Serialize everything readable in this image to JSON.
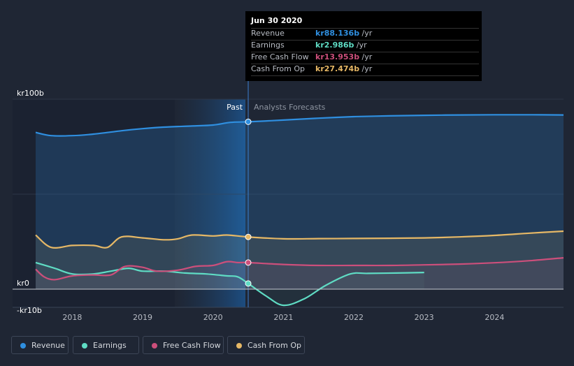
{
  "colors": {
    "revenue": "#2f8fe0",
    "earnings": "#5fdcc4",
    "free_cash_flow": "#cc4f7b",
    "cash_from_op": "#e6b866",
    "background": "#1f2634"
  },
  "tooltip": {
    "date": "Jun 30 2020",
    "rows": [
      {
        "label": "Revenue",
        "value": "kr88.136b",
        "unit": " /yr"
      },
      {
        "label": "Earnings",
        "value": "kr2.986b",
        "unit": " /yr"
      },
      {
        "label": "Free Cash Flow",
        "value": "kr13.953b",
        "unit": " /yr"
      },
      {
        "label": "Cash From Op",
        "value": "kr27.474b",
        "unit": " /yr"
      }
    ]
  },
  "legend": [
    {
      "label": "Revenue",
      "icon": "revenue-dot"
    },
    {
      "label": "Earnings",
      "icon": "earnings-dot"
    },
    {
      "label": "Free Cash Flow",
      "icon": "free-cash-flow-dot"
    },
    {
      "label": "Cash From Op",
      "icon": "cash-from-op-dot"
    }
  ],
  "chart_data": {
    "type": "line",
    "title": "",
    "xlabel": "",
    "ylabel": "",
    "ylim": [
      -10,
      100
    ],
    "xlim": [
      2017.45,
      2024.98
    ],
    "y_tick_labels": [
      {
        "value": 100,
        "label": "kr100b"
      },
      {
        "value": 0,
        "label": "kr0"
      },
      {
        "value": -10,
        "label": "-kr10b"
      }
    ],
    "x_ticks": [
      {
        "value": 2018,
        "label": "2018"
      },
      {
        "value": 2019,
        "label": "2019"
      },
      {
        "value": 2020,
        "label": "2020"
      },
      {
        "value": 2021,
        "label": "2021"
      },
      {
        "value": 2022,
        "label": "2022"
      },
      {
        "value": 2023,
        "label": "2023"
      },
      {
        "value": 2024,
        "label": "2024"
      }
    ],
    "divider": {
      "x": 2020.5,
      "past_label": "Past",
      "forecast_label": "Analysts Forecasts"
    },
    "series": [
      {
        "name": "Revenue",
        "key": "revenue",
        "x": [
          2017.48,
          2017.7,
          2018.0,
          2018.3,
          2018.7,
          2019.0,
          2019.3,
          2019.7,
          2020.0,
          2020.25,
          2020.5,
          2021.0,
          2021.5,
          2022.0,
          2022.5,
          2023.0,
          2023.5,
          2024.0,
          2024.5,
          2024.98
        ],
        "y": [
          82.5,
          80.8,
          80.8,
          81.6,
          83.4,
          84.5,
          85.3,
          85.9,
          86.4,
          87.8,
          88.1,
          89.0,
          90.0,
          90.8,
          91.2,
          91.5,
          91.7,
          91.8,
          91.8,
          91.7
        ]
      },
      {
        "name": "Earnings",
        "key": "earnings",
        "x": [
          2017.48,
          2017.75,
          2018.0,
          2018.3,
          2018.55,
          2018.8,
          2019.0,
          2019.3,
          2019.6,
          2019.9,
          2020.2,
          2020.35,
          2020.5,
          2020.75,
          2021.0,
          2021.3,
          2021.6,
          2021.95,
          2022.2,
          2022.6,
          2023.0
        ],
        "y": [
          14.0,
          11.0,
          8.0,
          8.0,
          9.5,
          11.0,
          9.5,
          9.5,
          8.5,
          8.0,
          7.0,
          6.5,
          3.0,
          -3.5,
          -8.5,
          -5.0,
          2.0,
          8.0,
          8.3,
          8.5,
          8.8
        ]
      },
      {
        "name": "Free Cash Flow",
        "key": "free_cash_flow",
        "x": [
          2017.48,
          2017.6,
          2017.75,
          2018.0,
          2018.3,
          2018.55,
          2018.75,
          2019.0,
          2019.2,
          2019.5,
          2019.75,
          2020.0,
          2020.2,
          2020.35,
          2020.5,
          2021.0,
          2021.5,
          2022.0,
          2022.5,
          2023.0,
          2023.5,
          2024.0,
          2024.5,
          2024.98
        ],
        "y": [
          10.5,
          6.5,
          5.0,
          7.0,
          7.5,
          7.5,
          12.0,
          11.5,
          9.5,
          10.0,
          12.0,
          12.5,
          14.5,
          14.0,
          14.0,
          13.0,
          12.5,
          12.5,
          12.5,
          12.8,
          13.2,
          13.9,
          15.0,
          16.5
        ]
      },
      {
        "name": "Cash From Op",
        "key": "cash_from_op",
        "x": [
          2017.48,
          2017.7,
          2018.0,
          2018.3,
          2018.5,
          2018.7,
          2019.0,
          2019.3,
          2019.5,
          2019.7,
          2020.0,
          2020.2,
          2020.5,
          2021.0,
          2021.5,
          2022.0,
          2022.5,
          2023.0,
          2023.5,
          2024.0,
          2024.5,
          2024.98
        ],
        "y": [
          28.5,
          22.0,
          23.0,
          23.0,
          22.0,
          27.5,
          27.0,
          26.0,
          26.5,
          28.5,
          28.0,
          28.5,
          27.5,
          26.5,
          26.6,
          26.7,
          26.8,
          27.0,
          27.5,
          28.3,
          29.5,
          30.5
        ]
      }
    ],
    "highlight": {
      "x": 2020.5,
      "points": [
        {
          "key": "revenue",
          "y": 88.1
        },
        {
          "key": "earnings",
          "y": 3.0
        },
        {
          "key": "free_cash_flow",
          "y": 14.0
        },
        {
          "key": "cash_from_op",
          "y": 27.5
        }
      ]
    }
  }
}
